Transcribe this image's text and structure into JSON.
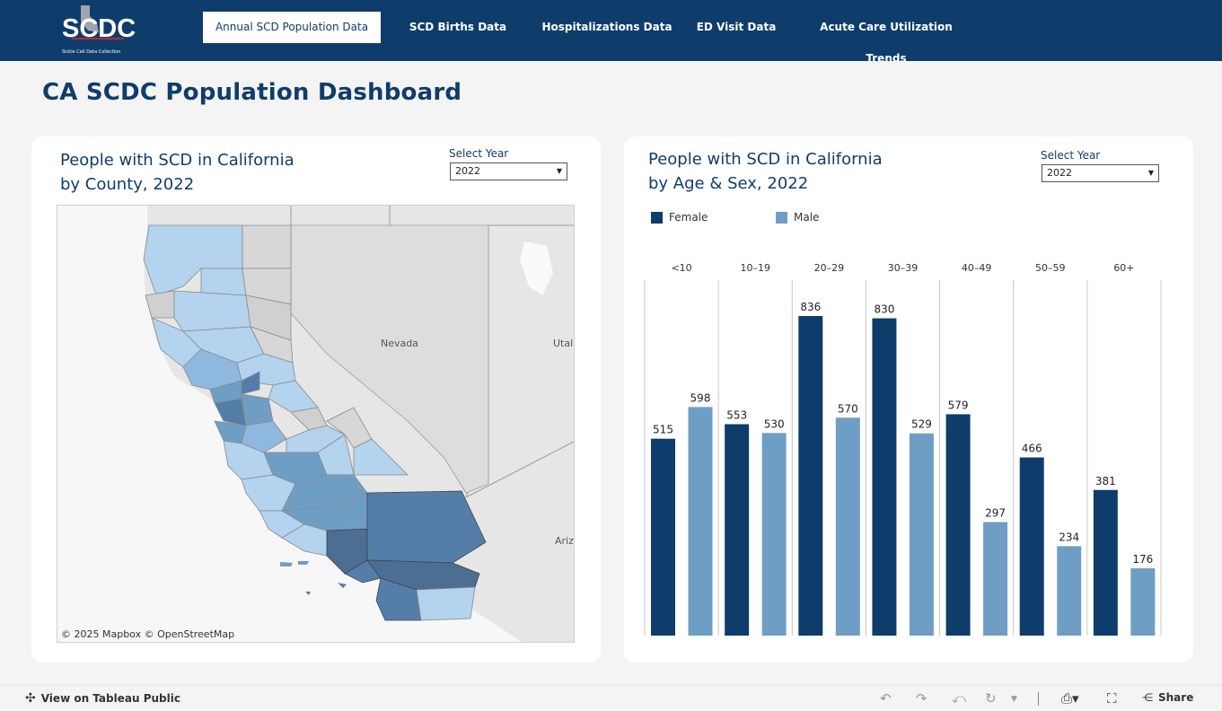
{
  "logo": {
    "text": "SCDC",
    "subtext": "Sickle Cell Data Collection"
  },
  "nav": [
    {
      "label": "Annual SCD Population Data",
      "active": true
    },
    {
      "label": "SCD Births Data",
      "active": false
    },
    {
      "label": "Hospitalizations Data",
      "active": false
    },
    {
      "label": "ED Visit Data",
      "active": false
    },
    {
      "label": "Acute Care Utilization Trends",
      "active": false
    }
  ],
  "page_title": "CA SCDC Population Dashboard",
  "left_panel": {
    "title_line1": "People with SCD in California",
    "title_line2": "by County, 2022",
    "year_label": "Select Year",
    "year_value": "2022",
    "map_labels": {
      "nevada": "Nevada",
      "utah": "Utal",
      "arizona": "Ariz"
    },
    "credit": "© 2025 Mapbox  © OpenStreetMap"
  },
  "right_panel": {
    "title_line1": "People with SCD in California",
    "title_line2": "by Age & Sex, 2022",
    "year_label": "Select Year",
    "year_value": "2022"
  },
  "colors": {
    "female": "#0f3d6b",
    "male": "#6f9ec5",
    "nav": "#0f3d6b"
  },
  "chart_data": {
    "type": "bar",
    "categories": [
      "<10",
      "10–19",
      "20–29",
      "30–39",
      "40–49",
      "50–59",
      "60+"
    ],
    "series": [
      {
        "name": "Female",
        "values": [
          515,
          553,
          836,
          830,
          579,
          466,
          381
        ]
      },
      {
        "name": "Male",
        "values": [
          598,
          530,
          570,
          529,
          297,
          234,
          176
        ]
      }
    ],
    "legend": "top-left",
    "ylim": [
      0,
      900
    ]
  },
  "bottom": {
    "tableau_link": "View on Tableau Public",
    "share": "Share"
  }
}
